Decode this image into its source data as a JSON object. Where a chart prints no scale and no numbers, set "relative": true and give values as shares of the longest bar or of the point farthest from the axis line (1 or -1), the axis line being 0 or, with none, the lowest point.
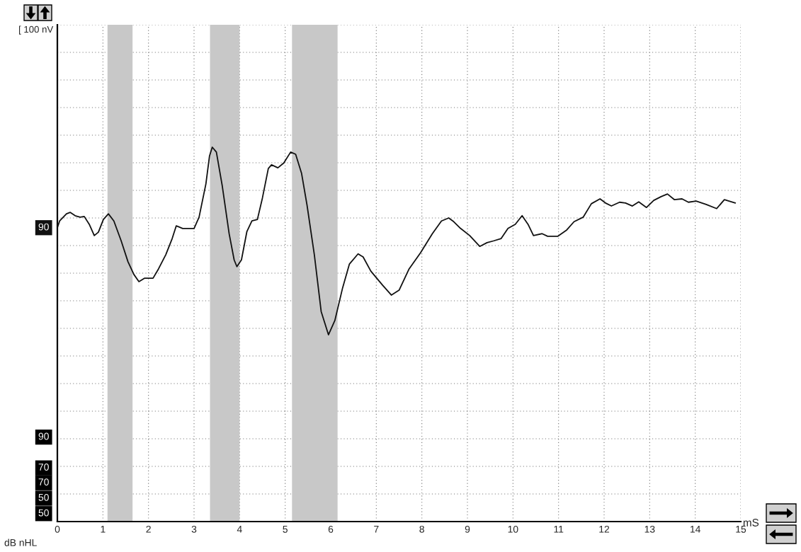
{
  "chart_data": {
    "type": "line",
    "xlabel": "mS",
    "relative": true,
    "xlim": [
      0,
      15
    ],
    "xticks": [
      0,
      1,
      2,
      3,
      4,
      5,
      6,
      7,
      8,
      9,
      10,
      11,
      12,
      13,
      14,
      15
    ],
    "grid": true,
    "tick_labels": "x",
    "line_style": "solid",
    "x": [
      0,
      0.05,
      0.2,
      0.28,
      0.39,
      0.5,
      0.59,
      0.7,
      0.81,
      0.9,
      1.01,
      1.12,
      1.24,
      1.4,
      1.55,
      1.68,
      1.79,
      1.91,
      2.1,
      2.22,
      2.38,
      2.52,
      2.61,
      2.75,
      3.0,
      3.11,
      3.26,
      3.34,
      3.4,
      3.49,
      3.62,
      3.77,
      3.88,
      3.94,
      4.04,
      4.16,
      4.27,
      4.39,
      4.5,
      4.63,
      4.7,
      4.84,
      4.97,
      5.12,
      5.23,
      5.36,
      5.48,
      5.64,
      5.79,
      5.95,
      6.09,
      6.26,
      6.41,
      6.6,
      6.71,
      6.88,
      7.14,
      7.33,
      7.5,
      7.72,
      7.97,
      8.23,
      8.43,
      8.59,
      8.7,
      8.85,
      9.05,
      9.27,
      9.43,
      9.58,
      9.74,
      9.89,
      10.05,
      10.2,
      10.33,
      10.45,
      10.64,
      10.76,
      10.98,
      11.18,
      11.34,
      11.54,
      11.72,
      11.91,
      12.03,
      12.16,
      12.34,
      12.47,
      12.62,
      12.76,
      12.93,
      13.09,
      13.25,
      13.39,
      13.54,
      13.71,
      13.85,
      14.02,
      14.24,
      14.47,
      14.64,
      14.88
    ],
    "series": [
      {
        "name": "90",
        "color": "#111111",
        "values": [
          0.785,
          0.803,
          0.822,
          0.826,
          0.817,
          0.813,
          0.815,
          0.794,
          0.764,
          0.773,
          0.807,
          0.822,
          0.803,
          0.75,
          0.694,
          0.66,
          0.641,
          0.65,
          0.65,
          0.675,
          0.713,
          0.756,
          0.79,
          0.783,
          0.783,
          0.813,
          0.902,
          0.977,
          1.0,
          0.987,
          0.896,
          0.769,
          0.699,
          0.681,
          0.699,
          0.775,
          0.803,
          0.807,
          0.864,
          0.943,
          0.953,
          0.945,
          0.958,
          0.987,
          0.981,
          0.93,
          0.845,
          0.713,
          0.561,
          0.499,
          0.537,
          0.624,
          0.688,
          0.715,
          0.707,
          0.669,
          0.631,
          0.605,
          0.618,
          0.675,
          0.718,
          0.769,
          0.803,
          0.811,
          0.801,
          0.783,
          0.764,
          0.735,
          0.745,
          0.75,
          0.756,
          0.783,
          0.794,
          0.817,
          0.794,
          0.764,
          0.769,
          0.762,
          0.762,
          0.779,
          0.801,
          0.813,
          0.849,
          0.862,
          0.851,
          0.843,
          0.853,
          0.851,
          0.843,
          0.854,
          0.839,
          0.858,
          0.868,
          0.875,
          0.86,
          0.862,
          0.853,
          0.856,
          0.847,
          0.836,
          0.86,
          0.851
        ]
      }
    ],
    "bands": [
      {
        "axis": "x",
        "from": 1.1,
        "to": 1.65,
        "color": "#c8c8c8"
      },
      {
        "axis": "x",
        "from": 3.35,
        "to": 4.0,
        "color": "#c8c8c8"
      },
      {
        "axis": "x",
        "from": 5.15,
        "to": 6.15,
        "color": "#c8c8c8"
      }
    ],
    "annotations": [
      "[ 100 nV",
      "90",
      "70",
      "70",
      "50",
      "50",
      "dB nHL"
    ]
  }
}
